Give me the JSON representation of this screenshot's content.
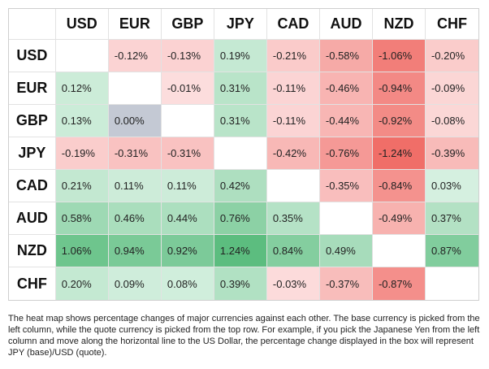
{
  "table": {
    "columns": [
      "USD",
      "EUR",
      "GBP",
      "JPY",
      "CAD",
      "AUD",
      "NZD",
      "CHF"
    ],
    "rows": [
      {
        "label": "USD",
        "cells": [
          null,
          "-0.12%",
          "-0.13%",
          "0.19%",
          "-0.21%",
          "-0.58%",
          "-1.06%",
          "-0.20%"
        ]
      },
      {
        "label": "EUR",
        "cells": [
          "0.12%",
          null,
          "-0.01%",
          "0.31%",
          "-0.11%",
          "-0.46%",
          "-0.94%",
          "-0.09%"
        ]
      },
      {
        "label": "GBP",
        "cells": [
          "0.13%",
          "0.00%",
          null,
          "0.31%",
          "-0.11%",
          "-0.44%",
          "-0.92%",
          "-0.08%"
        ]
      },
      {
        "label": "JPY",
        "cells": [
          "-0.19%",
          "-0.31%",
          "-0.31%",
          null,
          "-0.42%",
          "-0.76%",
          "-1.24%",
          "-0.39%"
        ]
      },
      {
        "label": "CAD",
        "cells": [
          "0.21%",
          "0.11%",
          "0.11%",
          "0.42%",
          null,
          "-0.35%",
          "-0.84%",
          "0.03%"
        ]
      },
      {
        "label": "AUD",
        "cells": [
          "0.58%",
          "0.46%",
          "0.44%",
          "0.76%",
          "0.35%",
          null,
          "-0.49%",
          "0.37%"
        ]
      },
      {
        "label": "NZD",
        "cells": [
          "1.06%",
          "0.94%",
          "0.92%",
          "1.24%",
          "0.84%",
          "0.49%",
          null,
          "0.87%"
        ]
      },
      {
        "label": "CHF",
        "cells": [
          "0.20%",
          "0.09%",
          "0.08%",
          "0.39%",
          "-0.03%",
          "-0.37%",
          "-0.87%",
          null
        ]
      }
    ]
  },
  "note": "The heat map shows percentage changes of major currencies against each other. The base currency is picked from the left column, while the quote currency is picked from the top row. For example, if you pick the Japanese Yen from the left column and move along the horizontal line to the US Dollar, the percentage change displayed in the box will represent JPY (base)/USD (quote)."
}
